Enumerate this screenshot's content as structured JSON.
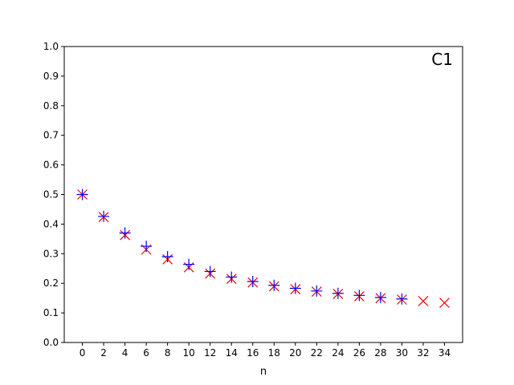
{
  "chart_data": {
    "type": "scatter",
    "title": "",
    "xlabel": "n",
    "ylabel": "",
    "annotation": "C1",
    "xlim": [
      -1.7,
      35.7
    ],
    "ylim": [
      0.0,
      1.0
    ],
    "x_ticks": [
      "0",
      "2",
      "4",
      "6",
      "8",
      "10",
      "12",
      "14",
      "16",
      "18",
      "20",
      "22",
      "24",
      "26",
      "28",
      "30",
      "32",
      "34"
    ],
    "y_ticks": [
      "0.0",
      "0.1",
      "0.2",
      "0.3",
      "0.4",
      "0.5",
      "0.6",
      "0.7",
      "0.8",
      "0.9",
      "1.0"
    ],
    "grid": false,
    "legend": "none",
    "series": [
      {
        "marker": "x",
        "color": "#ff0000",
        "x": [
          0,
          2,
          4,
          6,
          8,
          10,
          12,
          14,
          16,
          18,
          20,
          22,
          24,
          26,
          28,
          30,
          32,
          34
        ],
        "y": [
          0.5,
          0.424,
          0.363,
          0.314,
          0.281,
          0.254,
          0.233,
          0.215,
          0.203,
          0.19,
          0.18,
          0.172,
          0.164,
          0.156,
          0.15,
          0.145,
          0.14,
          0.134
        ]
      },
      {
        "marker": "+",
        "color": "#0000ff",
        "x": [
          0,
          2,
          4,
          6,
          8,
          10,
          12,
          14,
          16,
          18,
          20,
          22,
          24,
          26,
          28,
          30
        ],
        "y": [
          0.5,
          0.426,
          0.37,
          0.325,
          0.29,
          0.264,
          0.24,
          0.221,
          0.206,
          0.193,
          0.183,
          0.174,
          0.166,
          0.159,
          0.152,
          0.147
        ]
      }
    ]
  }
}
